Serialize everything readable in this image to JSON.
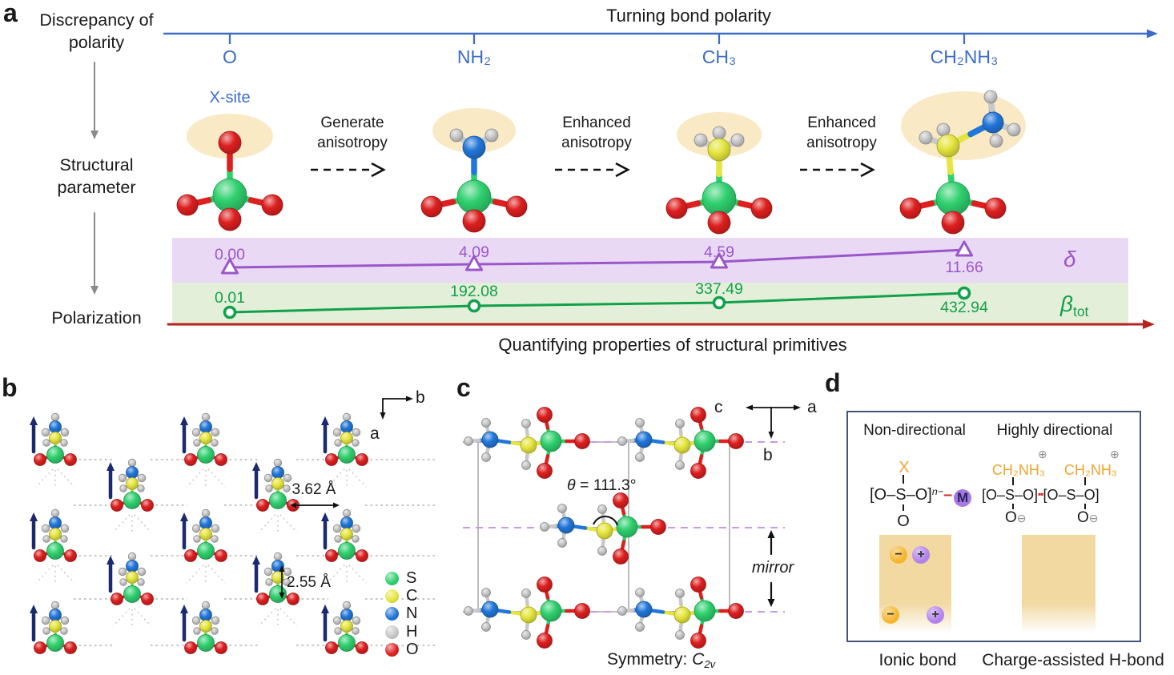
{
  "colors": {
    "blue_axis": "#3b6cc7",
    "purple": "#9b57c9",
    "purple_band": "#e9d9f5",
    "green": "#12a14b",
    "green_band": "#e4efd9",
    "red_axis": "#b5241e",
    "navy_arrow": "#1b2a6e",
    "gray_arrow": "#8a8a8a",
    "highlight_tan": "#f9e9c4",
    "highlight_box": "#f2d9a2",
    "orange": "#f0a430",
    "metal_purple": "#a878e2",
    "charge_minus": "#f5b62e",
    "charge_plus": "#b183ea",
    "claw_red": "#d62828",
    "key_green": "#21a14b",
    "panel_border": "#44557a",
    "dashed_purple": "#c79ae8",
    "cell_gray": "#9a9a9a",
    "hbond_gray": "#b0b0b0"
  },
  "panel_a": {
    "label": "a",
    "row_labels": [
      "Discrepancy of polarity",
      "Structural parameter",
      "Polarization"
    ],
    "axis_title": "Turning bond polarity",
    "x_site_label": "X-site",
    "substituents": [
      "O",
      "NH₂",
      "CH₃",
      "CH₂NH₃"
    ],
    "transitions": [
      "Generate anisotropy",
      "Enhanced anisotropy",
      "Enhanced anisotropy"
    ],
    "delta_symbol": "δ",
    "beta_symbol": "β",
    "beta_sub": "tot",
    "caption": "Quantifying properties of structural primitives"
  },
  "chart_data": {
    "type": "line",
    "categories": [
      "O",
      "NH₂",
      "CH₃",
      "CH₂NH₃"
    ],
    "series": [
      {
        "name": "δ",
        "marker": "triangle",
        "color": "#9b57c9",
        "values": [
          "0.00",
          "4.09",
          "4.59",
          "11.66"
        ]
      },
      {
        "name": "βtot",
        "marker": "circle",
        "color": "#12a14b",
        "values": [
          "0.01",
          "192.08",
          "337.49",
          "432.94"
        ]
      }
    ],
    "xlabel": "Turning bond polarity",
    "note": "schematic twin strip-charts over substituent axis; baseline is red polarization axis"
  },
  "panel_b": {
    "label": "b",
    "axis": {
      "horizontal": "b",
      "vertical": "a"
    },
    "distance_labels": [
      "3.62 Å",
      "2.55 Å"
    ],
    "legend": [
      {
        "element": "S",
        "color": "#2fd06e"
      },
      {
        "element": "C",
        "color": "#e5e53e"
      },
      {
        "element": "N",
        "color": "#2176d9"
      },
      {
        "element": "H",
        "color": "#c8c8c8"
      },
      {
        "element": "O",
        "color": "#dd1f1f"
      }
    ]
  },
  "panel_c": {
    "label": "c",
    "axis": {
      "left": "c",
      "right": "a",
      "down": "b"
    },
    "theta_symbol": "θ",
    "angle_rest": " = 111.3°",
    "mirror_label": "mirror",
    "symmetry_prefix": "Symmetry: ",
    "symmetry_c": "C",
    "symmetry_sub": "2v"
  },
  "panel_d": {
    "label": "d",
    "headers": [
      "Non-directional",
      "Highly directional"
    ],
    "left_formula": {
      "x": "X",
      "bracket": "[O–S–O]",
      "sup": "n−",
      "dash": "–",
      "metal": "M",
      "below": "O"
    },
    "right_formula": {
      "cation": "CH₂NH₃",
      "plus": "⊕",
      "bracket": "[O–S–O]",
      "hbond": "▪▪",
      "below_o": "O",
      "minus": "⊖"
    },
    "charges": {
      "minus": "−",
      "plus": "+"
    },
    "captions": [
      "Ionic bond",
      "Charge-assisted H-bond"
    ]
  }
}
